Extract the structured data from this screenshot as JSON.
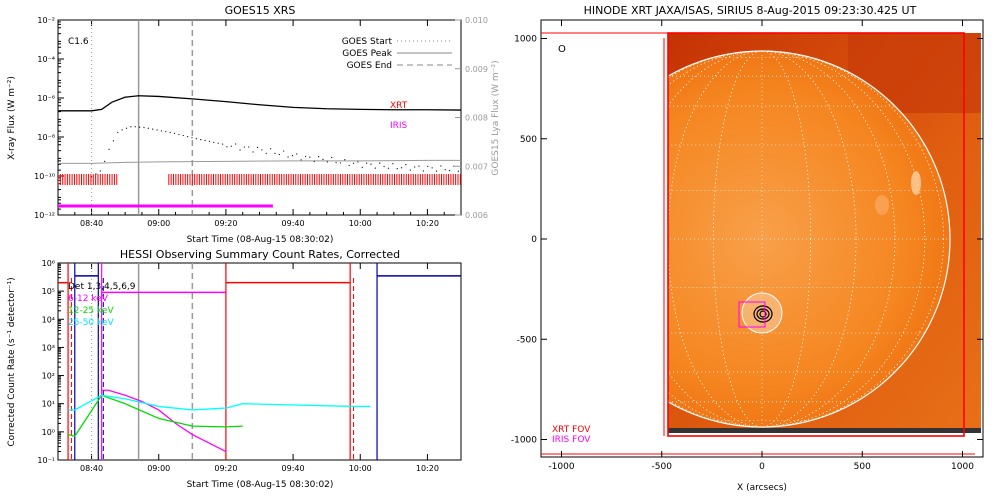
{
  "colors": {
    "xrt": "#ff0000",
    "iris": "#ff00ff",
    "goes": "#000000",
    "lya": "#999999",
    "hessi_bg": "#0000aa",
    "hessi_lo": "#ff00ff",
    "hessi_mid": "#00dd00",
    "hessi_hi": "#00ffff",
    "sun_dark": "#d23c05",
    "sun_mid": "#f57c14",
    "sun_light": "#fb9b3e"
  },
  "goes_panel": {
    "title": "GOES15 XRS",
    "flare_class": "C1.6",
    "legend": [
      "GOES Start",
      "GOES Peak",
      "GOES End"
    ],
    "xrt_label": "XRT",
    "iris_label": "IRIS",
    "xlabel": "Start Time (08-Aug-15 08:30:02)",
    "ylabel": "X-ray Flux (W m⁻²)",
    "y2label": "GOES15 Lya Flux (W m⁻²)"
  },
  "hessi_panel": {
    "title": "HESSI Observing Summary Count Rates, Corrected",
    "legend": [
      "Det 1,3,4,5,6,9",
      "6-12 keV",
      "12-25 keV",
      "25-50 keV"
    ],
    "xlabel": "Start Time (08-Aug-15 08:30:02)",
    "ylabel": "Corrected Count Rate (s⁻¹ detector⁻¹)"
  },
  "image_panel": {
    "title": "HINODE XRT JAXA/ISAS, SIRIUS   8-Aug-2015 09:23:30.425 UT",
    "xlabel": "X (arcsecs)",
    "xrt_fov_label": "XRT FOV",
    "iris_fov_label": "IRIS FOV",
    "circle_symbol": "O"
  },
  "chart_data": [
    {
      "type": "line",
      "title": "GOES15 XRS",
      "xlabel": "Start Time (08-Aug-15 08:30:02)",
      "ylabel": "X-ray Flux (W m⁻²)",
      "y2label": "GOES15 Lya Flux (W m⁻²)",
      "x_ticks": [
        "08:40",
        "09:00",
        "09:20",
        "09:40",
        "10:00",
        "10:20"
      ],
      "xlim_minutes": [
        -10,
        110
      ],
      "y_log": true,
      "ylim": [
        1e-12,
        0.01
      ],
      "y_ticks": [
        "10⁻¹²",
        "10⁻¹⁰",
        "10⁻⁸",
        "10⁻⁶",
        "10⁻⁴",
        "10⁻²"
      ],
      "y2_ticks": [
        "0.006",
        "0.007",
        "0.008",
        "0.009",
        "0.010"
      ],
      "event_lines_minutes": {
        "start": 0,
        "peak": 14,
        "end": 30
      },
      "series": [
        {
          "name": "Long",
          "x": [
            -10,
            0,
            3,
            6,
            10,
            14,
            20,
            30,
            40,
            50,
            60,
            70,
            80,
            90,
            100,
            110
          ],
          "values": [
            2.2e-07,
            2.2e-07,
            2.6e-07,
            6e-07,
            1.1e-06,
            1.3e-06,
            1.2e-06,
            9e-07,
            6.5e-07,
            4.5e-07,
            3.3e-07,
            2.8e-07,
            2.6e-07,
            2.5e-07,
            2.5e-07,
            2.4e-07
          ]
        },
        {
          "name": "Short",
          "x": [
            -10,
            0,
            3,
            5,
            8,
            12,
            16,
            20,
            25,
            30,
            35,
            40,
            45,
            50,
            55,
            60,
            65,
            70,
            75,
            80,
            90,
            100,
            110
          ],
          "values": [
            9e-11,
            9e-11,
            2e-10,
            2e-09,
            2e-08,
            3.5e-08,
            3e-08,
            2.2e-08,
            1.5e-08,
            9e-09,
            6e-09,
            4e-09,
            2.8e-09,
            2.2e-09,
            1.6e-09,
            1.1e-09,
            8e-10,
            7e-10,
            5e-10,
            4e-10,
            3e-10,
            2.5e-10,
            2.2e-10
          ]
        },
        {
          "name": "Lya",
          "x": [
            -10,
            0,
            10,
            20,
            40,
            60,
            80,
            100,
            110
          ],
          "values": [
            0.00706,
            0.00706,
            0.00708,
            0.00709,
            0.0071,
            0.00711,
            0.00711,
            0.00712,
            0.00712
          ]
        }
      ],
      "xrt_coverage_minutes": [
        [
          -10,
          8
        ],
        [
          23,
          110
        ]
      ],
      "iris_coverage_minutes": [
        [
          -10,
          54
        ]
      ]
    },
    {
      "type": "line",
      "title": "HESSI Observing Summary Count Rates, Corrected",
      "xlabel": "Start Time (08-Aug-15 08:30:02)",
      "ylabel": "Corrected Count Rate (s⁻¹ detector⁻¹)",
      "x_ticks": [
        "08:40",
        "09:00",
        "09:20",
        "09:40",
        "10:00",
        "10:20"
      ],
      "xlim_minutes": [
        -10,
        110
      ],
      "y_log": true,
      "ylim": [
        0.1,
        1000000.0
      ],
      "y_ticks": [
        "10⁻¹",
        "10⁰",
        "10¹",
        "10²",
        "10³",
        "10⁴",
        "10⁵",
        "10⁶"
      ],
      "event_lines_minutes": {
        "start": 0,
        "peak": 14,
        "end": 30
      },
      "series": [
        {
          "name": "6-12 keV",
          "x": [
            3,
            5,
            10,
            15,
            20,
            25,
            30,
            35,
            40
          ],
          "values": [
            30,
            30,
            20,
            12,
            6,
            2,
            0.8,
            0.4,
            0.2
          ]
        },
        {
          "name": "12-25 keV",
          "x": [
            -7,
            -5,
            3,
            10,
            20,
            30,
            40,
            45
          ],
          "values": [
            0.8,
            0.7,
            20,
            10,
            3,
            1.6,
            1.5,
            1.6
          ]
        },
        {
          "name": "25-50 keV",
          "x": [
            -7,
            -5,
            3,
            10,
            20,
            30,
            40,
            45,
            78,
            83
          ],
          "values": [
            6,
            6,
            20,
            15,
            8,
            6,
            7,
            10,
            8,
            8
          ]
        }
      ]
    },
    {
      "type": "heatmap",
      "title": "HINODE XRT JAXA/ISAS, SIRIUS   8-Aug-2015 09:23:30.425 UT",
      "xlabel": "X (arcsecs)",
      "x_ticks": [
        -1000,
        -500,
        0,
        500,
        1000
      ],
      "y_ticks": [
        1000,
        500,
        0,
        -500,
        -1000
      ],
      "xlim": [
        -1100,
        1100
      ],
      "ylim": [
        -1100,
        1100
      ],
      "annotations": [
        "XRT FOV",
        "IRIS FOV"
      ]
    }
  ]
}
